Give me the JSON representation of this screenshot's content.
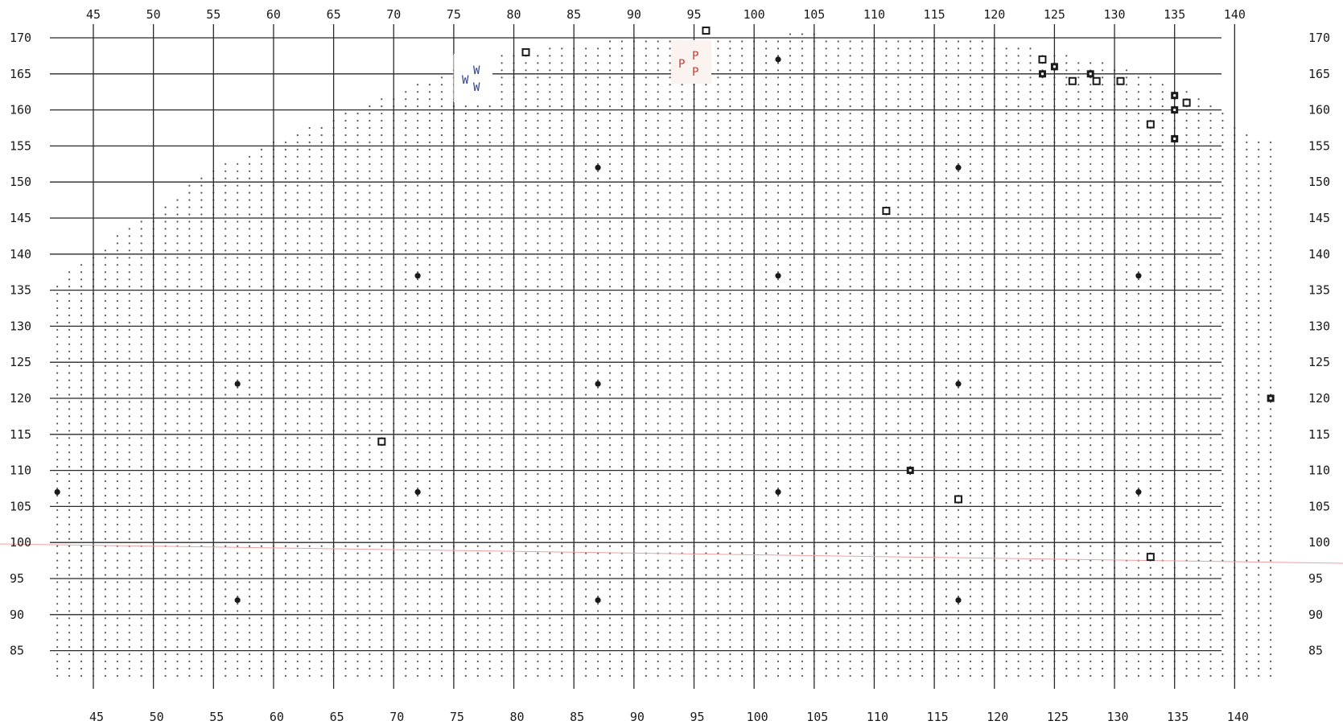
{
  "map": {
    "x_axis": {
      "top_ticks": [
        "45",
        "50",
        "55",
        "60",
        "65",
        "70",
        "75",
        "80",
        "85",
        "90",
        "95",
        "100",
        "105",
        "110",
        "115",
        "120",
        "125",
        "130",
        "135",
        "140"
      ],
      "bottom_ticks": [
        "45",
        "50",
        "55",
        "60",
        "65",
        "70",
        "75",
        "80",
        "85",
        "90",
        "95",
        "100",
        "105",
        "110",
        "115",
        "120",
        "125",
        "130",
        "135",
        "140"
      ],
      "range": [
        41.5,
        143.5
      ]
    },
    "y_axis": {
      "left_ticks": [
        "170",
        "165",
        "160",
        "155",
        "150",
        "145",
        "140",
        "135",
        "130",
        "125",
        "120",
        "115",
        "110",
        "105",
        "100",
        "95",
        "90",
        "85"
      ],
      "right_ticks": [
        "170",
        "165",
        "160",
        "155",
        "150",
        "145",
        "140",
        "135",
        "130",
        "125",
        "120",
        "115",
        "110",
        "105",
        "100",
        "95",
        "90",
        "85"
      ],
      "range": [
        84,
        172
      ]
    },
    "stipple_fill": "dotted region between the curved upper boundary and the bottom of the grid",
    "colors": {
      "grid": "#2a2a2a",
      "dots": "#555555",
      "marker": "#1a1a1a",
      "w_label": "#2b3fa0",
      "p_label": "#c0403a",
      "reference_line": "#f0a0a0"
    },
    "filled_circles": [
      [
        42,
        107
      ],
      [
        57,
        122
      ],
      [
        57,
        92
      ],
      [
        72,
        137
      ],
      [
        72,
        107
      ],
      [
        87,
        152
      ],
      [
        87,
        122
      ],
      [
        87,
        92
      ],
      [
        102,
        167
      ],
      [
        102,
        137
      ],
      [
        102,
        107
      ],
      [
        117,
        152
      ],
      [
        117,
        122
      ],
      [
        117,
        92
      ],
      [
        132,
        137
      ],
      [
        132,
        107
      ]
    ],
    "hollow_squares": [
      [
        81,
        168
      ],
      [
        96,
        171
      ],
      [
        69,
        114
      ],
      [
        111,
        146
      ],
      [
        117,
        106
      ],
      [
        124,
        167
      ],
      [
        126.5,
        164
      ],
      [
        128.5,
        164
      ],
      [
        130.5,
        164
      ],
      [
        133,
        158
      ],
      [
        136,
        161
      ],
      [
        133,
        98
      ]
    ],
    "filled_squares": [
      [
        124,
        165
      ],
      [
        125,
        166
      ],
      [
        128,
        165
      ],
      [
        135,
        162
      ],
      [
        135,
        160
      ],
      [
        135,
        156
      ],
      [
        113,
        110
      ],
      [
        143,
        120
      ]
    ],
    "labels": {
      "w": [
        "W",
        "W",
        "W"
      ],
      "p": [
        "P",
        "P",
        "P"
      ]
    }
  }
}
